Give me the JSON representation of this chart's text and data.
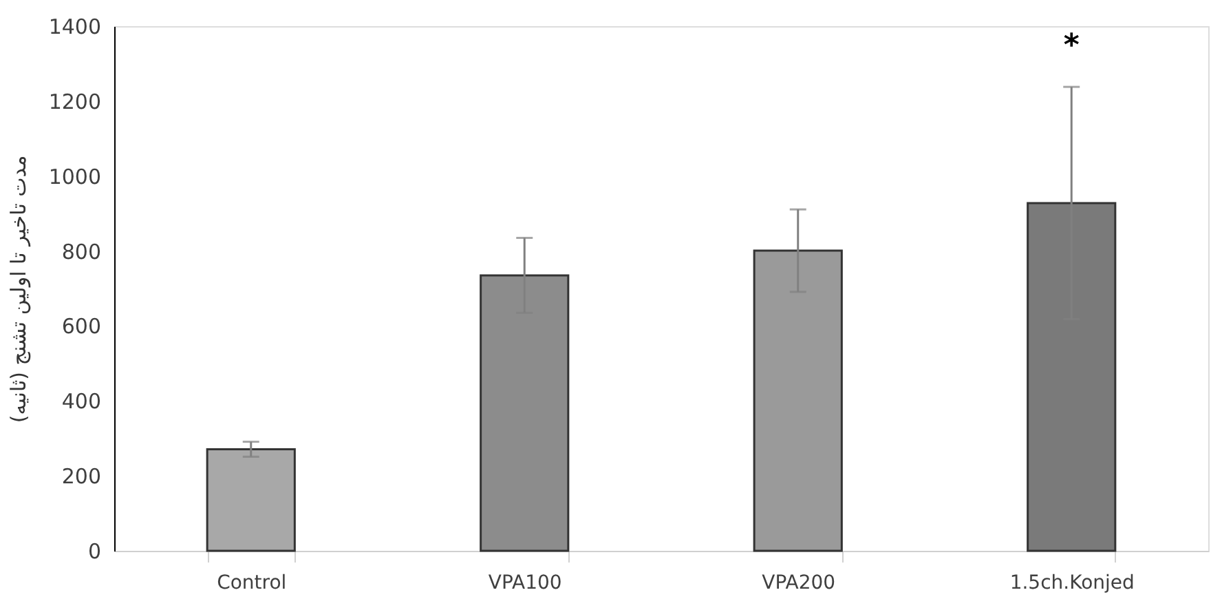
{
  "chart_data": {
    "type": "bar",
    "ylabel": "مدت تاخیر تا اولین تشنج (ثانیه)",
    "categories": [
      "Control",
      "VPA100",
      "VPA200",
      "1.5ch.Konjed"
    ],
    "values": [
      271,
      735,
      801,
      928
    ],
    "errors": [
      20,
      100,
      110,
      310
    ],
    "colors": [
      "#a8a8a8",
      "#8c8c8c",
      "#9a9a9a",
      "#7a7a7a"
    ],
    "ylim": [
      0,
      1400
    ],
    "yticks": [
      0,
      200,
      400,
      600,
      800,
      1000,
      1200,
      1400
    ],
    "grid": false,
    "annotations": [
      "*"
    ]
  }
}
